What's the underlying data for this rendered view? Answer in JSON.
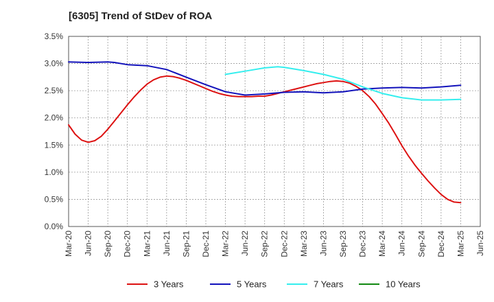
{
  "chart_data": {
    "type": "line",
    "title": "[6305]  Trend of StDev of ROA",
    "xlabel": "",
    "ylabel": "",
    "x_tick_labels": [
      "Mar-20",
      "Jun-20",
      "Sep-20",
      "Dec-20",
      "Mar-21",
      "Jun-21",
      "Sep-21",
      "Dec-21",
      "Mar-22",
      "Jun-22",
      "Sep-22",
      "Dec-22",
      "Mar-23",
      "Jun-23",
      "Sep-23",
      "Dec-23",
      "Mar-24",
      "Jun-24",
      "Sep-24",
      "Dec-24",
      "Mar-25",
      "Jun-25"
    ],
    "y_tick_labels": [
      "0.0%",
      "0.5%",
      "1.0%",
      "1.5%",
      "2.0%",
      "2.5%",
      "3.0%",
      "3.5%"
    ],
    "ylim": [
      0,
      3.5
    ],
    "y_unit": "%",
    "grid": true,
    "legend_position": "bottom",
    "series": [
      {
        "name": "3 Years",
        "color": "#dd1111",
        "x": [
          "Mar-20",
          "Apr-20",
          "May-20",
          "Jun-20",
          "Jul-20",
          "Aug-20",
          "Sep-20",
          "Oct-20",
          "Nov-20",
          "Dec-20",
          "Jan-21",
          "Feb-21",
          "Mar-21",
          "Apr-21",
          "May-21",
          "Jun-21",
          "Jul-21",
          "Aug-21",
          "Sep-21",
          "Oct-21",
          "Nov-21",
          "Dec-21",
          "Jan-22",
          "Feb-22",
          "Mar-22",
          "Apr-22",
          "May-22",
          "Jun-22",
          "Jul-22",
          "Aug-22",
          "Sep-22",
          "Oct-22",
          "Nov-22",
          "Dec-22",
          "Jan-23",
          "Feb-23",
          "Mar-23",
          "Apr-23",
          "May-23",
          "Jun-23",
          "Jul-23",
          "Aug-23",
          "Sep-23",
          "Oct-23",
          "Nov-23",
          "Dec-23",
          "Jan-24",
          "Feb-24",
          "Mar-24",
          "Apr-24",
          "May-24",
          "Jun-24",
          "Jul-24",
          "Aug-24",
          "Sep-24",
          "Oct-24",
          "Nov-24",
          "Dec-24",
          "Jan-25",
          "Feb-25",
          "Mar-25"
        ],
        "values": [
          1.87,
          1.7,
          1.59,
          1.55,
          1.58,
          1.66,
          1.79,
          1.94,
          2.09,
          2.24,
          2.38,
          2.51,
          2.62,
          2.7,
          2.75,
          2.77,
          2.76,
          2.73,
          2.69,
          2.64,
          2.59,
          2.54,
          2.49,
          2.45,
          2.42,
          2.4,
          2.39,
          2.39,
          2.39,
          2.4,
          2.4,
          2.42,
          2.45,
          2.48,
          2.51,
          2.54,
          2.57,
          2.6,
          2.63,
          2.65,
          2.67,
          2.68,
          2.67,
          2.64,
          2.58,
          2.5,
          2.39,
          2.25,
          2.08,
          1.9,
          1.7,
          1.49,
          1.3,
          1.13,
          0.98,
          0.84,
          0.71,
          0.59,
          0.5,
          0.45,
          0.44
        ]
      },
      {
        "name": "5 Years",
        "color": "#1111bb",
        "x": [
          "Mar-20",
          "Jun-20",
          "Sep-20",
          "Oct-20",
          "Dec-20",
          "Mar-21",
          "Jun-21",
          "Sep-21",
          "Dec-21",
          "Mar-22",
          "Jun-22",
          "Sep-22",
          "Dec-22",
          "Mar-23",
          "Jun-23",
          "Sep-23",
          "Dec-23",
          "Mar-24",
          "Jun-24",
          "Sep-24",
          "Dec-24",
          "Mar-25"
        ],
        "values": [
          3.03,
          3.02,
          3.03,
          3.02,
          2.98,
          2.96,
          2.89,
          2.75,
          2.61,
          2.48,
          2.42,
          2.44,
          2.47,
          2.48,
          2.46,
          2.48,
          2.53,
          2.55,
          2.56,
          2.55,
          2.57,
          2.6
        ]
      },
      {
        "name": "7 Years",
        "color": "#33eeee",
        "x": [
          "Mar-22",
          "Jun-22",
          "Sep-22",
          "Nov-22",
          "Dec-22",
          "Mar-23",
          "Jun-23",
          "Sep-23",
          "Dec-23",
          "Mar-24",
          "Jun-24",
          "Sep-24",
          "Dec-24",
          "Mar-25"
        ],
        "values": [
          2.8,
          2.86,
          2.92,
          2.94,
          2.93,
          2.87,
          2.8,
          2.71,
          2.57,
          2.45,
          2.37,
          2.33,
          2.33,
          2.34
        ]
      },
      {
        "name": "10 Years",
        "color": "#118811",
        "x": [],
        "values": []
      }
    ]
  }
}
